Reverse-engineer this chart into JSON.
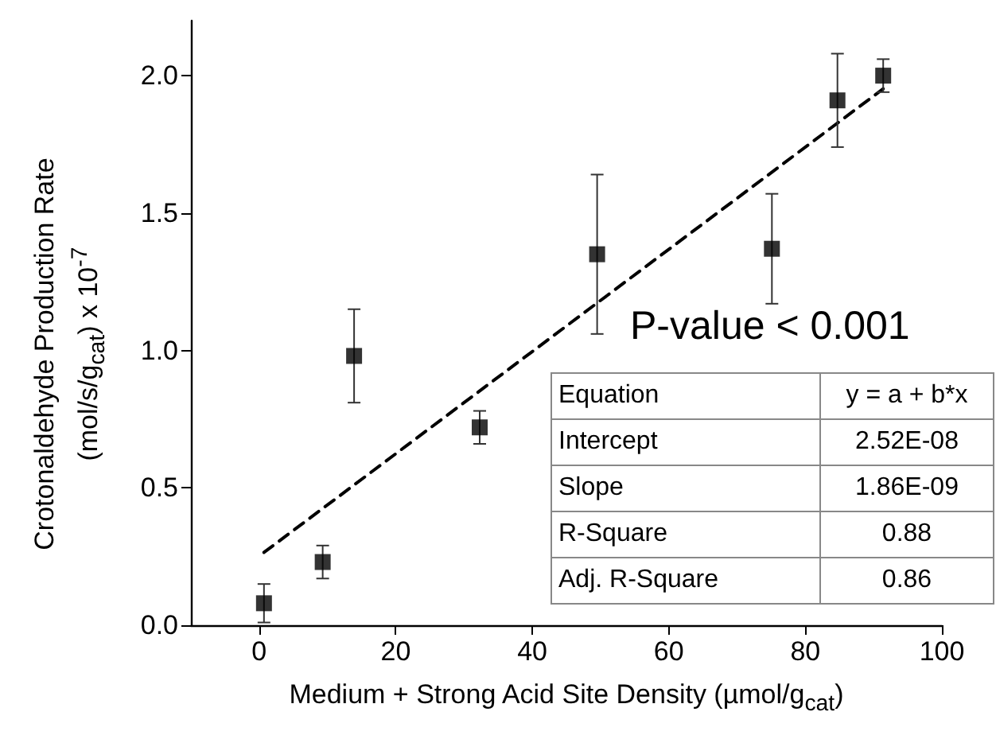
{
  "chart_data": {
    "type": "scatter",
    "xlabel": "Medium + Strong Acid Site Density (µmol/g$_{cat}$)",
    "ylabel": "Crotonaldehyde Production Rate (mol/s/g$_{cat}$) x 10$^{-7}$",
    "xlim": [
      -10,
      100
    ],
    "xticks": [
      0,
      20,
      40,
      60,
      80,
      100
    ],
    "ylim": [
      0,
      2.2
    ],
    "yticks": [
      "0.0",
      0.5,
      "1.0",
      1.5,
      "2.0"
    ],
    "grid": false,
    "series": [
      {
        "marker": "square",
        "color": "#000000",
        "x": [
          0.7,
          9.3,
          13.9,
          32.3,
          49.5,
          75.1,
          84.7,
          91.4
        ],
        "values": [
          0.08,
          0.23,
          0.98,
          0.72,
          1.35,
          1.37,
          1.91,
          2.0
        ],
        "errors": [
          0.07,
          0.06,
          0.17,
          0.06,
          0.29,
          0.2,
          0.17,
          0.06
        ]
      },
      {
        "type": "line",
        "color": "#000000",
        "line_style": "dashed",
        "x": [
          0.7,
          91.4
        ],
        "values": [
          0.265,
          1.952
        ]
      }
    ],
    "annotations": [
      "P-value < 0.001",
      "Equation",
      "y = a + b*x",
      "Intercept",
      "2.52E-08",
      "Slope",
      "1.86E-09",
      "R-Square",
      "0.88",
      "Adj. R-Square",
      "0.86"
    ]
  }
}
